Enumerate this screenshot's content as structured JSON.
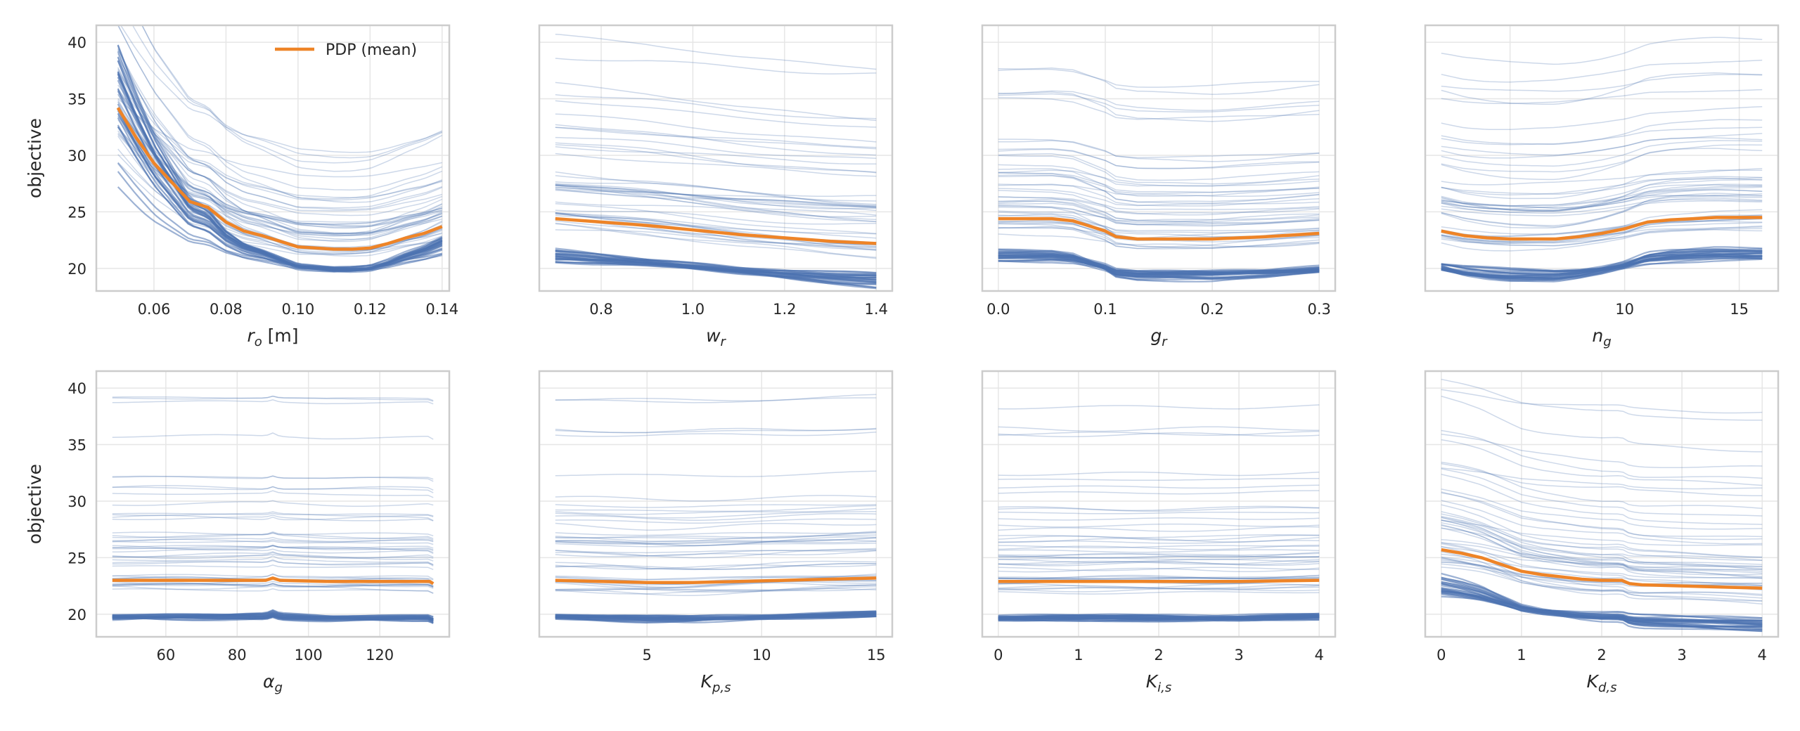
{
  "figure": {
    "ylabel": "objective",
    "legend": {
      "label": "PDP (mean)",
      "position": "top-right",
      "color": "#ee8427"
    },
    "colors": {
      "ice": "#4c72b0",
      "pdp": "#ee8427",
      "grid": "#e6e6e6",
      "frame": "#cccccc"
    }
  },
  "chart_data": [
    {
      "type": "line",
      "xlabel_base": "r",
      "xlabel_sub": "o",
      "xlabel_suffix": " [m]",
      "xlim": [
        0.044,
        0.142
      ],
      "ylim": [
        18,
        41.5
      ],
      "xticks": [
        0.06,
        0.08,
        0.1,
        0.12,
        0.14
      ],
      "xtick_labels": [
        "0.06",
        "0.08",
        "0.10",
        "0.12",
        "0.14"
      ],
      "yticks": [
        20,
        25,
        30,
        35,
        40
      ],
      "ytick_labels": [
        "20",
        "25",
        "30",
        "35",
        "40"
      ],
      "show_yticks": true,
      "show_ylabel": true,
      "legend": true,
      "pdp": {
        "x": [
          0.05,
          0.055,
          0.06,
          0.065,
          0.07,
          0.075,
          0.08,
          0.085,
          0.09,
          0.095,
          0.1,
          0.105,
          0.11,
          0.115,
          0.12,
          0.125,
          0.13,
          0.135,
          0.14
        ],
        "y": [
          34.2,
          31.6,
          29.3,
          27.6,
          25.9,
          25.4,
          24.1,
          23.3,
          22.9,
          22.4,
          21.9,
          21.8,
          21.7,
          21.7,
          21.8,
          22.2,
          22.7,
          23.1,
          23.7
        ]
      },
      "ice_shape": {
        "kind": "ro"
      }
    },
    {
      "type": "line",
      "xlabel_base": "w",
      "xlabel_sub": "r",
      "xlabel_suffix": "",
      "xlim": [
        0.665,
        1.435
      ],
      "ylim": [
        18,
        41.5
      ],
      "xticks": [
        0.8,
        1.0,
        1.2,
        1.4
      ],
      "xtick_labels": [
        "0.8",
        "1.0",
        "1.2",
        "1.4"
      ],
      "yticks": [
        20,
        25,
        30,
        35,
        40
      ],
      "ytick_labels": [
        "20",
        "25",
        "30",
        "35",
        "40"
      ],
      "show_yticks": false,
      "show_ylabel": false,
      "legend": false,
      "pdp": {
        "x": [
          0.7,
          0.8,
          0.9,
          1.0,
          1.1,
          1.2,
          1.3,
          1.4
        ],
        "y": [
          24.4,
          24.1,
          23.8,
          23.4,
          23.0,
          22.7,
          22.4,
          22.2
        ]
      },
      "ice_shape": {
        "kind": "decline",
        "amount": 2.0
      }
    },
    {
      "type": "line",
      "xlabel_base": "g",
      "xlabel_sub": "r",
      "xlabel_suffix": "",
      "xlim": [
        -0.015,
        0.315
      ],
      "ylim": [
        18,
        41.5
      ],
      "xticks": [
        0.0,
        0.1,
        0.2,
        0.3
      ],
      "xtick_labels": [
        "0.0",
        "0.1",
        "0.2",
        "0.3"
      ],
      "yticks": [
        20,
        25,
        30,
        35,
        40
      ],
      "ytick_labels": [
        "20",
        "25",
        "30",
        "35",
        "40"
      ],
      "show_yticks": false,
      "show_ylabel": false,
      "legend": false,
      "pdp": {
        "x": [
          0.0,
          0.05,
          0.07,
          0.09,
          0.1,
          0.11,
          0.13,
          0.2,
          0.25,
          0.3
        ],
        "y": [
          24.4,
          24.4,
          24.2,
          23.6,
          23.3,
          22.8,
          22.6,
          22.6,
          22.8,
          23.1
        ]
      },
      "ice_shape": {
        "kind": "step",
        "at": 0.1,
        "amount": 2.6
      }
    },
    {
      "type": "line",
      "xlabel_base": "n",
      "xlabel_sub": "g",
      "xlabel_suffix": "",
      "xlim": [
        1.3,
        16.7
      ],
      "ylim": [
        18,
        41.5
      ],
      "xticks": [
        5,
        10,
        15
      ],
      "xtick_labels": [
        "5",
        "10",
        "15"
      ],
      "yticks": [
        20,
        25,
        30,
        35,
        40
      ],
      "ytick_labels": [
        "20",
        "25",
        "30",
        "35",
        "40"
      ],
      "show_yticks": false,
      "show_ylabel": false,
      "legend": false,
      "pdp": {
        "x": [
          2,
          3,
          4,
          5,
          6,
          7,
          8,
          9,
          10,
          11,
          12,
          13,
          14,
          15,
          16
        ],
        "y": [
          23.3,
          22.9,
          22.7,
          22.6,
          22.6,
          22.6,
          22.8,
          23.1,
          23.5,
          24.1,
          24.3,
          24.4,
          24.5,
          24.5,
          24.5
        ]
      },
      "ice_shape": {
        "kind": "valley",
        "amount": 3.0
      }
    },
    {
      "type": "line",
      "xlabel_base": "α",
      "xlabel_sub": "g",
      "xlabel_suffix": "",
      "xlim": [
        40.5,
        139.5
      ],
      "ylim": [
        18,
        41.5
      ],
      "xticks": [
        60,
        80,
        100,
        120
      ],
      "xtick_labels": [
        "60",
        "80",
        "100",
        "120"
      ],
      "yticks": [
        20,
        25,
        30,
        35,
        40
      ],
      "ytick_labels": [
        "20",
        "25",
        "30",
        "35",
        "40"
      ],
      "show_yticks": true,
      "show_ylabel": true,
      "legend": false,
      "pdp": {
        "x": [
          45,
          60,
          75,
          88,
          90,
          92,
          105,
          120,
          134,
          135
        ],
        "y": [
          23.0,
          23.0,
          23.0,
          23.0,
          23.2,
          23.0,
          22.9,
          22.9,
          22.9,
          22.7
        ]
      },
      "ice_shape": {
        "kind": "flat"
      }
    },
    {
      "type": "line",
      "xlabel_base": "K",
      "xlabel_sub": "p,s",
      "xlabel_suffix": "",
      "xlim": [
        0.3,
        15.7
      ],
      "ylim": [
        18,
        41.5
      ],
      "xticks": [
        5,
        10,
        15
      ],
      "xtick_labels": [
        "5",
        "10",
        "15"
      ],
      "yticks": [
        20,
        25,
        30,
        35,
        40
      ],
      "ytick_labels": [
        "20",
        "25",
        "30",
        "35",
        "40"
      ],
      "show_yticks": false,
      "show_ylabel": false,
      "legend": false,
      "pdp": {
        "x": [
          1,
          3,
          5,
          7,
          9,
          11,
          13,
          15
        ],
        "y": [
          23.0,
          22.9,
          22.8,
          22.8,
          22.9,
          23.0,
          23.1,
          23.2
        ]
      },
      "ice_shape": {
        "kind": "flat"
      }
    },
    {
      "type": "line",
      "xlabel_base": "K",
      "xlabel_sub": "i,s",
      "xlabel_suffix": "",
      "xlim": [
        -0.2,
        4.2
      ],
      "ylim": [
        18,
        41.5
      ],
      "xticks": [
        0,
        1,
        2,
        3,
        4
      ],
      "xtick_labels": [
        "0",
        "1",
        "2",
        "3",
        "4"
      ],
      "yticks": [
        20,
        25,
        30,
        35,
        40
      ],
      "ytick_labels": [
        "20",
        "25",
        "30",
        "35",
        "40"
      ],
      "show_yticks": false,
      "show_ylabel": false,
      "legend": false,
      "pdp": {
        "x": [
          0,
          1,
          2,
          3,
          4
        ],
        "y": [
          22.9,
          22.9,
          22.9,
          22.9,
          23.0
        ]
      },
      "ice_shape": {
        "kind": "flat"
      }
    },
    {
      "type": "line",
      "xlabel_base": "K",
      "xlabel_sub": "d,s",
      "xlabel_suffix": "",
      "xlim": [
        -0.2,
        4.2
      ],
      "ylim": [
        18,
        41.5
      ],
      "xticks": [
        0,
        1,
        2,
        3,
        4
      ],
      "xtick_labels": [
        "0",
        "1",
        "2",
        "3",
        "4"
      ],
      "yticks": [
        20,
        25,
        30,
        35,
        40
      ],
      "ytick_labels": [
        "20",
        "25",
        "30",
        "35",
        "40"
      ],
      "show_yticks": false,
      "show_ylabel": false,
      "legend": false,
      "pdp": {
        "x": [
          0,
          0.25,
          0.5,
          0.75,
          1.0,
          1.25,
          1.5,
          1.75,
          2.0,
          2.25,
          2.35,
          2.5,
          3.0,
          3.5,
          4.0
        ],
        "y": [
          25.7,
          25.4,
          25.0,
          24.4,
          23.8,
          23.5,
          23.3,
          23.1,
          23.0,
          23.0,
          22.7,
          22.6,
          22.5,
          22.4,
          22.3
        ]
      },
      "ice_shape": {
        "kind": "decline_step",
        "at": 2.35,
        "amount": 2.4
      }
    }
  ]
}
